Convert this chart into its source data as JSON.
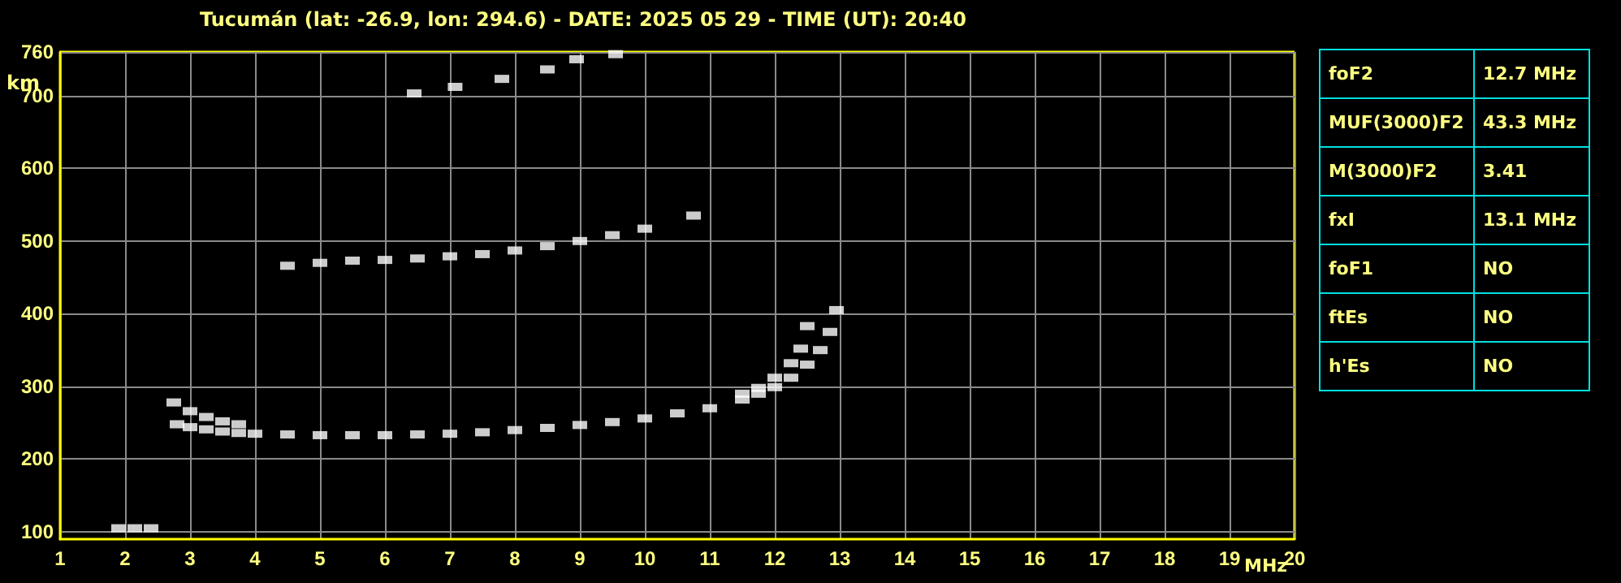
{
  "chart_data": [
    {
      "type": "scatter",
      "title": "Tucumán (lat: -26.9, lon: 294.6) - DATE: 2025 05 29 - TIME (UT): 20:40",
      "xlabel": "MHz",
      "ylabel": "km",
      "xlim": [
        1,
        20
      ],
      "xticks": [
        1,
        2,
        3,
        4,
        5,
        6,
        7,
        8,
        9,
        10,
        11,
        12,
        13,
        14,
        15,
        16,
        17,
        18,
        19,
        20
      ],
      "ylim": [
        90,
        760
      ],
      "yticks": [
        100,
        200,
        300,
        400,
        500,
        600,
        700,
        760
      ],
      "grid": true,
      "marker": "square",
      "series": [
        {
          "color": "#ffffff",
          "x": [
            2.8,
            3.0,
            3.25,
            3.5,
            3.75,
            4.0,
            4.5,
            5.0,
            5.5,
            6.0,
            6.5,
            7.0,
            7.5,
            8.0,
            8.5,
            9.0,
            9.5,
            10.0,
            10.5,
            11.0,
            11.5,
            11.75,
            12.0,
            12.25,
            12.5,
            12.7,
            12.85,
            12.95
          ],
          "values": [
            248,
            244,
            241,
            238,
            236,
            235,
            234,
            233,
            233,
            233,
            234,
            235,
            237,
            240,
            243,
            247,
            251,
            256,
            263,
            270,
            282,
            290,
            299,
            312,
            330,
            350,
            375,
            405
          ]
        },
        {
          "color": "#ffffff",
          "x": [
            2.75,
            3.0,
            3.25,
            3.5,
            3.75,
            11.5,
            11.75,
            12.0,
            12.25,
            12.4,
            12.5
          ],
          "values": [
            278,
            266,
            258,
            252,
            248,
            290,
            298,
            312,
            332,
            352,
            383
          ]
        },
        {
          "color": "#ffffff",
          "x": [
            4.5,
            5.0,
            5.5,
            6.0,
            6.5,
            7.0,
            7.5,
            8.0,
            8.5,
            9.0,
            9.5,
            10.0,
            10.75
          ],
          "values": [
            466,
            470,
            473,
            474,
            476,
            479,
            482,
            487,
            493,
            500,
            508,
            517,
            535
          ]
        },
        {
          "color": "#ffffff",
          "x": [
            6.45,
            7.08,
            7.8,
            8.5,
            8.95,
            9.55
          ],
          "values": [
            703,
            712,
            723,
            736,
            750,
            757
          ]
        },
        {
          "color": "#ffffff",
          "x": [
            1.9,
            2.15,
            2.4
          ],
          "values": [
            105,
            105,
            105
          ]
        }
      ]
    },
    {
      "type": "other",
      "annotations": [
        "foF2",
        "12.7 MHz",
        "MUF(3000)F2",
        "43.3 MHz",
        "M(3000)F2",
        "3.41",
        "fxI",
        "13.1 MHz",
        "foF1",
        "NO",
        "ftEs",
        "NO",
        "h'Es",
        "NO"
      ]
    }
  ]
}
